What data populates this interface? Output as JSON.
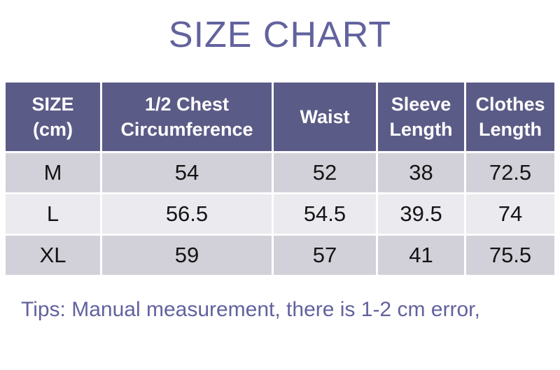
{
  "title": "SIZE CHART",
  "tips": "Tips: Manual measurement, there is 1-2 cm error,",
  "colors": {
    "header-bg": "#5b5b87",
    "row-odd-bg": "#d2d1d9",
    "row-even-bg": "#eaeaef",
    "accent-text": "#62629e",
    "cell-text": "#141414",
    "header-text": "#ffffff"
  },
  "table": {
    "headers": [
      "SIZE\n(cm)",
      "1/2 Chest\nCircumference",
      "Waist",
      "Sleeve\nLength",
      "Clothes\nLength"
    ],
    "rows": [
      {
        "cells": [
          "M",
          "54",
          "52",
          "38",
          "72.5"
        ]
      },
      {
        "cells": [
          "L",
          "56.5",
          "54.5",
          "39.5",
          "74"
        ]
      },
      {
        "cells": [
          "XL",
          "59",
          "57",
          "41",
          "75.5"
        ]
      }
    ]
  },
  "chart_data": {
    "type": "table",
    "title": "SIZE CHART",
    "columns": [
      "SIZE (cm)",
      "1/2 Chest Circumference",
      "Waist",
      "Sleeve Length",
      "Clothes Length"
    ],
    "rows": [
      [
        "M",
        54,
        52,
        38,
        72.5
      ],
      [
        "L",
        56.5,
        54.5,
        39.5,
        74
      ],
      [
        "XL",
        59,
        57,
        41,
        75.5
      ]
    ],
    "unit": "cm",
    "note": "Tips: Manual measurement, there is 1-2 cm error,"
  }
}
